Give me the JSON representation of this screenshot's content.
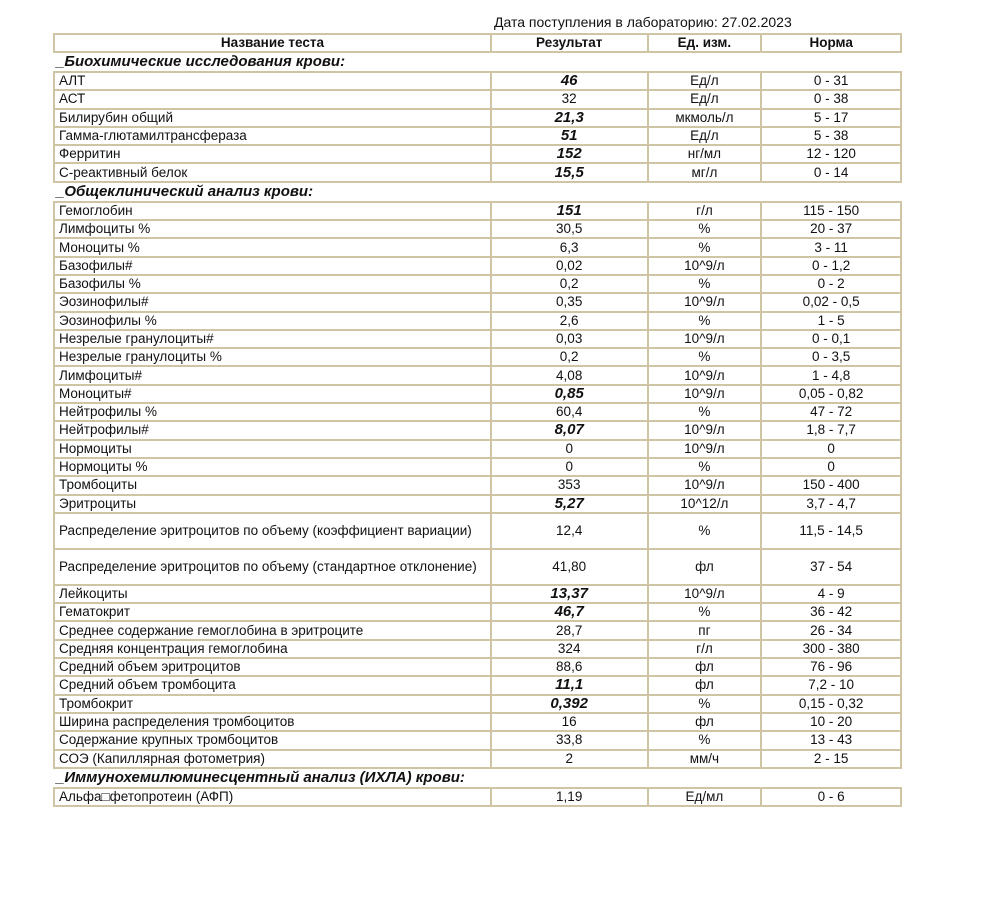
{
  "date_label": "Дата поступления в лабораторию: 27.02.2023",
  "headers": [
    "Название теста",
    "Результат",
    "Ед. изм.",
    "Норма"
  ],
  "sections": [
    {
      "title": "_Биохимические исследования крови:",
      "rows": [
        [
          "АЛТ",
          "46",
          "Ед/л",
          "0 - 31",
          true
        ],
        [
          "АСТ",
          "32",
          "Ед/л",
          "0 - 38",
          false
        ],
        [
          "Билирубин общий",
          "21,3",
          "мкмоль/л",
          "5 - 17",
          true
        ],
        [
          "Гамма-глютамилтрансфераза",
          "51",
          "Ед/л",
          "5 - 38",
          true
        ],
        [
          "Ферритин",
          "152",
          "нг/мл",
          "12 - 120",
          true
        ],
        [
          "С-реактивный белок",
          "15,5",
          "мг/л",
          "0 - 14",
          true
        ]
      ]
    },
    {
      "title": "_Общеклинический анализ крови:",
      "rows": [
        [
          "Гемоглобин",
          "151",
          "г/л",
          "115 - 150",
          true
        ],
        [
          "Лимфоциты %",
          "30,5",
          "%",
          "20 - 37",
          false
        ],
        [
          "Моноциты %",
          "6,3",
          "%",
          "3 - 11",
          false
        ],
        [
          "Базофилы#",
          "0,02",
          "10^9/л",
          "0 - 1,2",
          false
        ],
        [
          "Базофилы %",
          "0,2",
          "%",
          "0 - 2",
          false
        ],
        [
          "Эозинофилы#",
          "0,35",
          "10^9/л",
          "0,02 - 0,5",
          false
        ],
        [
          "Эозинофилы %",
          "2,6",
          "%",
          "1 - 5",
          false
        ],
        [
          "Незрелые гранулоциты#",
          "0,03",
          "10^9/л",
          "0 - 0,1",
          false
        ],
        [
          "Незрелые гранулоциты %",
          "0,2",
          "%",
          "0 - 3,5",
          false
        ],
        [
          "Лимфоциты#",
          "4,08",
          "10^9/л",
          "1 - 4,8",
          false
        ],
        [
          "Моноциты#",
          "0,85",
          "10^9/л",
          "0,05 - 0,82",
          true
        ],
        [
          "Нейтрофилы %",
          "60,4",
          "%",
          "47 - 72",
          false
        ],
        [
          "Нейтрофилы#",
          "8,07",
          "10^9/л",
          "1,8 - 7,7",
          true
        ],
        [
          "Нормоциты",
          "0",
          "10^9/л",
          "0",
          false
        ],
        [
          "Нормоциты %",
          "0",
          "%",
          "0",
          false
        ],
        [
          "Тромбоциты",
          "353",
          "10^9/л",
          "150 - 400",
          false
        ],
        [
          "Эритроциты",
          "5,27",
          "10^12/л",
          "3,7 - 4,7",
          true
        ],
        [
          "Распределение эритроцитов по объему (коэффициент вариации)",
          "12,4",
          "%",
          "11,5 - 14,5",
          false
        ],
        [
          "Распределение эритроцитов по объему (стандартное отклонение)",
          "41,80",
          "фл",
          "37 - 54",
          false
        ],
        [
          "Лейкоциты",
          "13,37",
          "10^9/л",
          "4 - 9",
          true
        ],
        [
          "Гематокрит",
          "46,7",
          "%",
          "36 - 42",
          true
        ],
        [
          "Среднее содержание гемоглобина в эритроците",
          "28,7",
          "пг",
          "26 - 34",
          false
        ],
        [
          "Средняя концентрация гемоглобина",
          "324",
          "г/л",
          "300 - 380",
          false
        ],
        [
          "Средний объем эритроцитов",
          "88,6",
          "фл",
          "76 - 96",
          false
        ],
        [
          "Средний объем тромбоцита",
          "11,1",
          "фл",
          "7,2 - 10",
          true
        ],
        [
          "Тромбокрит",
          "0,392",
          "%",
          "0,15 - 0,32",
          true
        ],
        [
          "Ширина распределения тромбоцитов",
          "16",
          "фл",
          "10 - 20",
          false
        ],
        [
          "Содержание крупных тромбоцитов",
          "33,8",
          "%",
          "13 - 43",
          false
        ],
        [
          "СОЭ (Капиллярная фотометрия)",
          "2",
          "мм/ч",
          "2 - 15",
          false
        ]
      ]
    },
    {
      "title": "_Иммунохемилюминесцентный анализ (ИХЛА) крови:",
      "rows": [
        [
          "Альфа□фетопротеин (АФП)",
          "1,19",
          "Ед/мл",
          "0 - 6",
          false
        ]
      ]
    }
  ]
}
